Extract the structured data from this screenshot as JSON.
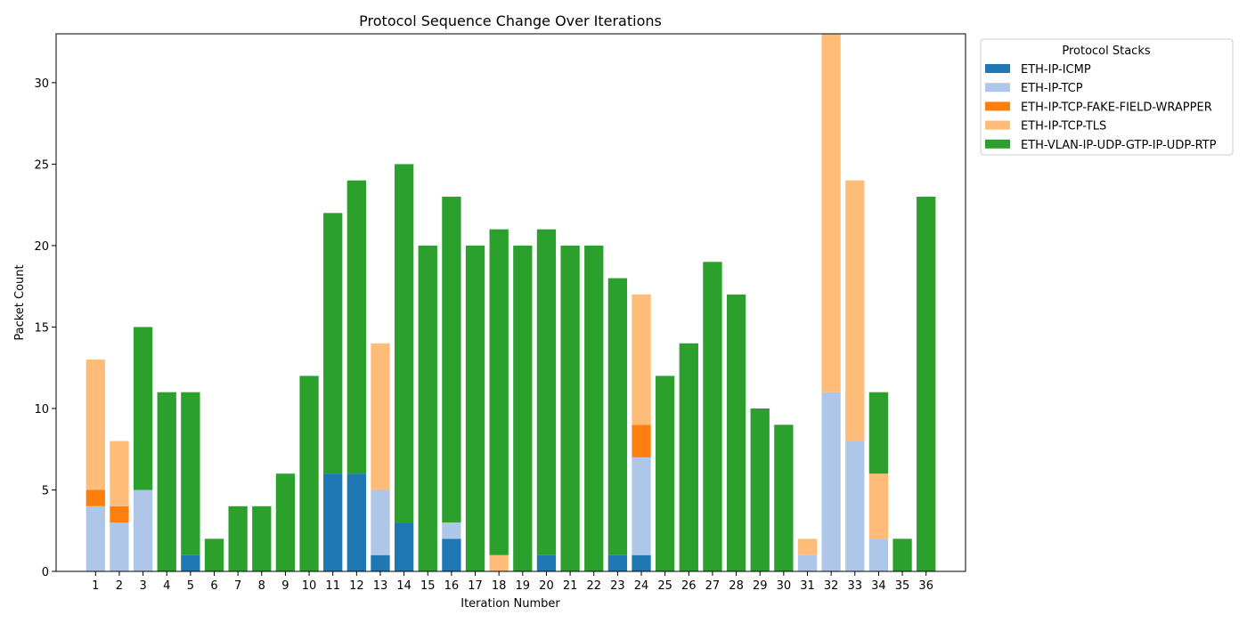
{
  "chart_data": {
    "type": "bar",
    "stacked": true,
    "title": "Protocol Sequence Change Over Iterations",
    "xlabel": "Iteration Number",
    "ylabel": "Packet Count",
    "ylim": [
      0,
      33
    ],
    "yticks": [
      0,
      5,
      10,
      15,
      20,
      25,
      30
    ],
    "grid": false,
    "legend": {
      "title": "Protocol Stacks",
      "placement": "outside-top-right"
    },
    "categories": [
      "1",
      "2",
      "3",
      "4",
      "5",
      "6",
      "7",
      "8",
      "9",
      "10",
      "11",
      "12",
      "13",
      "14",
      "15",
      "16",
      "17",
      "18",
      "19",
      "20",
      "21",
      "22",
      "23",
      "24",
      "25",
      "26",
      "27",
      "28",
      "29",
      "30",
      "31",
      "32",
      "33",
      "34",
      "35",
      "36"
    ],
    "series": [
      {
        "name": "ETH-IP-ICMP",
        "color": "#1f77b4",
        "values": [
          0,
          0,
          0,
          0,
          1,
          0,
          0,
          0,
          0,
          0,
          6,
          6,
          1,
          3,
          0,
          2,
          0,
          0,
          0,
          1,
          0,
          0,
          1,
          1,
          0,
          0,
          0,
          0,
          0,
          0,
          0,
          0,
          0,
          0,
          0,
          0
        ]
      },
      {
        "name": "ETH-IP-TCP",
        "color": "#aec7e8",
        "values": [
          4,
          3,
          5,
          0,
          0,
          0,
          0,
          0,
          0,
          0,
          0,
          0,
          4,
          0,
          0,
          1,
          0,
          0,
          0,
          0,
          0,
          0,
          0,
          6,
          0,
          0,
          0,
          0,
          0,
          0,
          1,
          11,
          8,
          2,
          0,
          0
        ]
      },
      {
        "name": "ETH-IP-TCP-FAKE-FIELD-WRAPPER",
        "color": "#ff7f0e",
        "values": [
          1,
          1,
          0,
          0,
          0,
          0,
          0,
          0,
          0,
          0,
          0,
          0,
          0,
          0,
          0,
          0,
          0,
          0,
          0,
          0,
          0,
          0,
          0,
          2,
          0,
          0,
          0,
          0,
          0,
          0,
          0,
          0,
          0,
          0,
          0,
          0
        ]
      },
      {
        "name": "ETH-IP-TCP-TLS",
        "color": "#ffbb78",
        "values": [
          8,
          4,
          0,
          0,
          0,
          0,
          0,
          0,
          0,
          0,
          0,
          0,
          9,
          0,
          0,
          0,
          0,
          1,
          0,
          0,
          0,
          0,
          0,
          8,
          0,
          0,
          0,
          0,
          0,
          0,
          1,
          22,
          16,
          4,
          0,
          0
        ]
      },
      {
        "name": "ETH-VLAN-IP-UDP-GTP-IP-UDP-RTP",
        "color": "#2ca02c",
        "values": [
          0,
          0,
          10,
          11,
          10,
          2,
          4,
          4,
          6,
          12,
          16,
          18,
          0,
          22,
          20,
          20,
          20,
          20,
          20,
          20,
          20,
          20,
          17,
          0,
          12,
          14,
          19,
          17,
          10,
          9,
          0,
          0,
          0,
          5,
          2,
          23
        ]
      }
    ]
  }
}
